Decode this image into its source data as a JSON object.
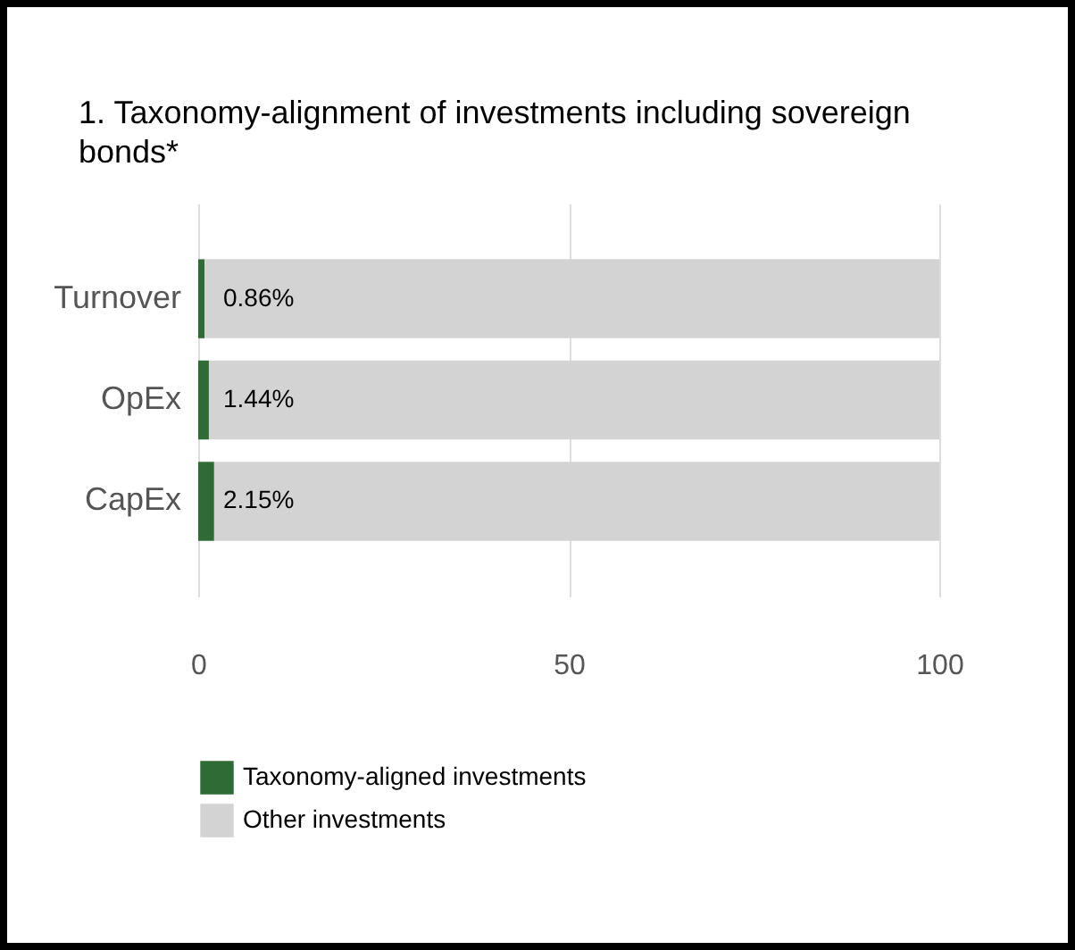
{
  "chart_data": {
    "type": "bar",
    "orientation": "horizontal",
    "stacked": true,
    "title": "1. Taxonomy-alignment of investments including sovereign bonds*",
    "categories": [
      "Turnover",
      "OpEx",
      "CapEx"
    ],
    "series": [
      {
        "name": "Taxonomy-aligned investments",
        "color": "#2e6b35",
        "values": [
          0.86,
          1.44,
          2.15
        ],
        "value_labels": [
          "0.86%",
          "1.44%",
          "2.15%"
        ]
      },
      {
        "name": "Other investments",
        "color": "#d3d3d3",
        "values": [
          99.14,
          98.56,
          97.85
        ]
      }
    ],
    "xlim": [
      0,
      100
    ],
    "xticks": [
      0,
      50,
      100
    ],
    "grid": "x",
    "legend": "bottom"
  }
}
